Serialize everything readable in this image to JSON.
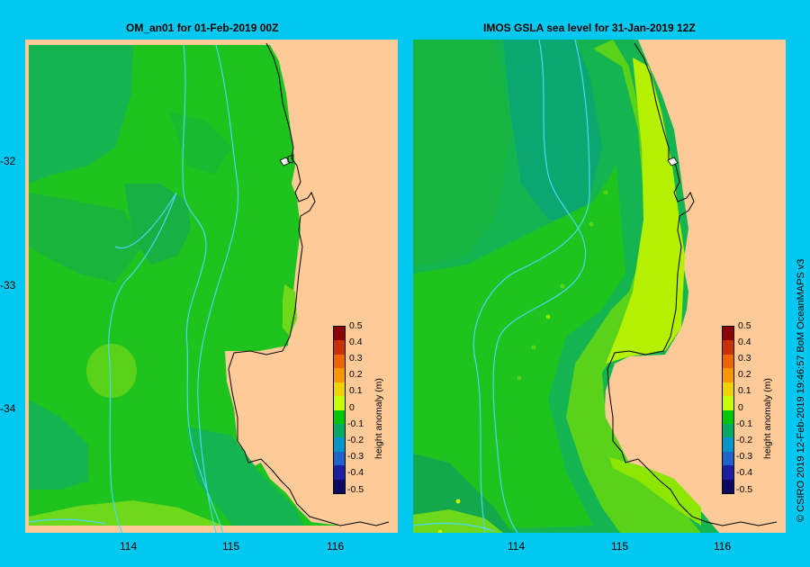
{
  "left_panel": {
    "title": "OM_an01  for 01-Feb-2019 00Z"
  },
  "right_panel": {
    "title": "IMOS GSLA sea level  for 31-Jan-2019 12Z"
  },
  "latitude_ticks": [
    "-32",
    "-33",
    "-34"
  ],
  "longitude_ticks": [
    "114",
    "115",
    "116"
  ],
  "colorbar": {
    "title": "height anomaly (m)",
    "labels": [
      "0.5",
      "0.4",
      "0.3",
      "0.2",
      "0.1",
      "0",
      "-0.1",
      "-0.2",
      "-0.3",
      "-0.4",
      "-0.5"
    ],
    "colors": [
      "#8b0000",
      "#c83200",
      "#f06400",
      "#fa9600",
      "#f0d200",
      "#c8ff00",
      "#00c800",
      "#00aa64",
      "#0096c8",
      "#1e64c8",
      "#1e1ea0",
      "#0a0a64"
    ]
  },
  "credit": "© CSIRO 2019   12-Feb-2019 19:46:57  BoM OceanMAPS v3",
  "colors": {
    "background": "#00c8f0",
    "land": "#fecb98",
    "contour": "#48d8f8"
  }
}
